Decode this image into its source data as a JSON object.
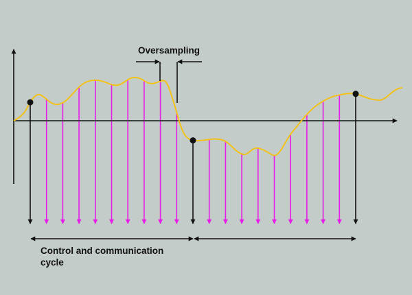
{
  "labels": {
    "oversampling": "Oversampling",
    "cycle": "Control and communication cycle"
  },
  "colors": {
    "background": "#c3ccc9",
    "signal": "#f2c21b",
    "oversample_arrow": "#e61de6",
    "cycle_arrow": "#111111"
  },
  "samples": {
    "cycles": 2,
    "oversamples_per_cycle": 9
  }
}
